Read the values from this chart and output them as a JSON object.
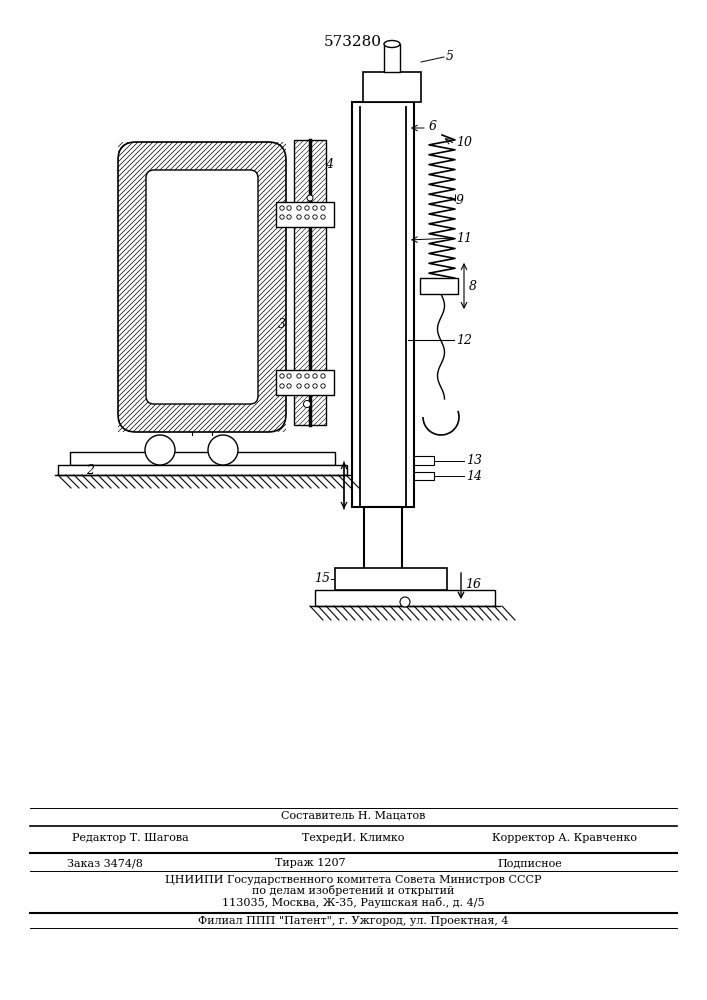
{
  "title": "573280",
  "bg": "#ffffff",
  "lc": "#000000",
  "footer_sestavitel": "Составитель Н. Мацатов",
  "footer_editor": "Редактор Т. Шагова",
  "footer_tech": "ТехредИ. Климко",
  "footer_corr": "Корректор А. Кравченко",
  "footer_order": "Заказ 3474/8",
  "footer_tirazh": "Тираж 1207",
  "footer_podp": "Подписное",
  "footer_cniip1": "ЦНИИПИ Государственного комитета Совета Министров СССР",
  "footer_cniip2": "по делам изобретений и открытий",
  "footer_addr": "113035, Москва, Ж-35, Раушская наб., д. 4/5",
  "footer_filial": "Филиал ППП \"Патент\", г. Ужгород, ул. Проектная, 4"
}
